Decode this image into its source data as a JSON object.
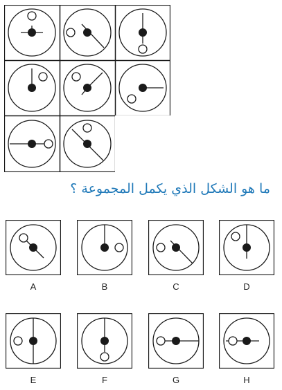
{
  "question": "ما هو الشكل الذي يكمل المجموعة ؟",
  "matrix": {
    "cells": [
      {
        "id": "r1c1",
        "line": "pivot",
        "small_circle": "top"
      },
      {
        "id": "r1c2",
        "line": "diag-down-right",
        "small_circle": "left"
      },
      {
        "id": "r1c3",
        "line": "up",
        "small_circle": "bottom"
      },
      {
        "id": "r2c1",
        "line": "up",
        "small_circle": "top-right"
      },
      {
        "id": "r2c2",
        "line": "diag-up-right",
        "small_circle": "top-left"
      },
      {
        "id": "r2c3",
        "line": "right",
        "small_circle": "bottom-left"
      },
      {
        "id": "r3c1",
        "line": "left",
        "small_circle": "right"
      },
      {
        "id": "r3c2",
        "line": "diag-down-right",
        "small_circle": "top"
      },
      {
        "id": "r3c3",
        "line": "none",
        "small_circle": "none"
      }
    ]
  },
  "options": [
    {
      "label": "A"
    },
    {
      "label": "B"
    },
    {
      "label": "C"
    },
    {
      "label": "D"
    },
    {
      "label": "E"
    },
    {
      "label": "F"
    },
    {
      "label": "G"
    },
    {
      "label": "H"
    }
  ],
  "colors": {
    "question_text": "#1e78b8",
    "stroke": "#1a1a1a"
  }
}
